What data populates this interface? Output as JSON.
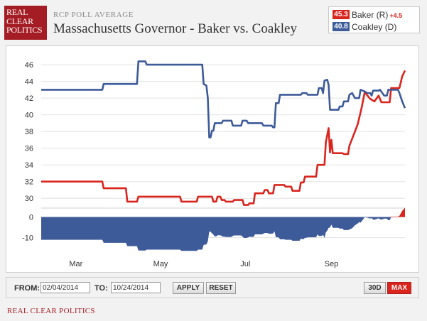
{
  "logo": {
    "lines": [
      "REAL",
      "CLEAR",
      "POLITICS"
    ]
  },
  "header": {
    "subtitle": "RCP POLL AVERAGE",
    "title": "Massachusetts Governor - Baker vs. Coakley"
  },
  "legend": {
    "items": [
      {
        "value": "45.3",
        "label": "Baker (R)",
        "spread": "+4.5",
        "color": "#d9251d"
      },
      {
        "value": "40.8",
        "label": "Coakley (D)",
        "spread": "",
        "color": "#3d5a99"
      }
    ]
  },
  "controls": {
    "from_label": "FROM:",
    "from_value": "02/04/2014",
    "to_label": "TO:",
    "to_value": "10/24/2014",
    "apply_label": "APPLY",
    "reset_label": "RESET",
    "range_30d": "30D",
    "range_max": "MAX"
  },
  "footer": {
    "text": "REAL CLEAR POLITICS"
  },
  "chart_data": {
    "type": "line",
    "x_range": [
      "2014-02-04",
      "2014-10-24"
    ],
    "x_ticks": [
      {
        "date": "2014-03-01",
        "label": "Mar"
      },
      {
        "date": "2014-05-01",
        "label": "May"
      },
      {
        "date": "2014-07-01",
        "label": "Jul"
      },
      {
        "date": "2014-09-01",
        "label": "Sep"
      }
    ],
    "y_ticks": [
      30,
      32,
      34,
      36,
      38,
      40,
      42,
      44,
      46
    ],
    "ylim": [
      29,
      47.2
    ],
    "spread_ticks": [
      0,
      -10
    ],
    "spread_ylim": [
      -17,
      4
    ],
    "grid": true,
    "series": [
      {
        "name": "Baker (R)",
        "color": "#d9251d",
        "points": [
          [
            "2014-02-04",
            32.0
          ],
          [
            "2014-03-20",
            32.0
          ],
          [
            "2014-03-21",
            31.2
          ],
          [
            "2014-04-06",
            31.2
          ],
          [
            "2014-04-07",
            29.6
          ],
          [
            "2014-04-14",
            29.6
          ],
          [
            "2014-04-15",
            30.2
          ],
          [
            "2014-05-15",
            30.2
          ],
          [
            "2014-05-16",
            29.6
          ],
          [
            "2014-05-27",
            29.6
          ],
          [
            "2014-05-28",
            30.2
          ],
          [
            "2014-06-07",
            30.2
          ],
          [
            "2014-06-08",
            29.6
          ],
          [
            "2014-06-10",
            29.6
          ],
          [
            "2014-06-11",
            30.2
          ],
          [
            "2014-06-13",
            30.2
          ],
          [
            "2014-06-14",
            29.8
          ],
          [
            "2014-06-16",
            29.8
          ],
          [
            "2014-06-17",
            29.6
          ],
          [
            "2014-06-22",
            29.6
          ],
          [
            "2014-06-23",
            29.8
          ],
          [
            "2014-06-29",
            29.8
          ],
          [
            "2014-06-30",
            29.2
          ],
          [
            "2014-07-03",
            29.2
          ],
          [
            "2014-07-04",
            29.4
          ],
          [
            "2014-07-07",
            29.4
          ],
          [
            "2014-07-08",
            30.6
          ],
          [
            "2014-07-14",
            30.6
          ],
          [
            "2014-07-15",
            31.0
          ],
          [
            "2014-07-17",
            31.0
          ],
          [
            "2014-07-18",
            30.6
          ],
          [
            "2014-07-21",
            30.6
          ],
          [
            "2014-07-22",
            31.6
          ],
          [
            "2014-07-29",
            31.6
          ],
          [
            "2014-07-30",
            31.4
          ],
          [
            "2014-08-03",
            31.4
          ],
          [
            "2014-08-04",
            30.9
          ],
          [
            "2014-08-09",
            30.9
          ],
          [
            "2014-08-10",
            31.9
          ],
          [
            "2014-08-12",
            31.9
          ],
          [
            "2014-08-13",
            32.6
          ],
          [
            "2014-08-21",
            32.6
          ],
          [
            "2014-08-22",
            34.0
          ],
          [
            "2014-08-27",
            34.0
          ],
          [
            "2014-08-28",
            36.7
          ],
          [
            "2014-08-30",
            38.4
          ],
          [
            "2014-08-31",
            35.5
          ],
          [
            "2014-09-01",
            37.0
          ],
          [
            "2014-09-02",
            35.4
          ],
          [
            "2014-09-09",
            35.4
          ],
          [
            "2014-09-10",
            35.3
          ],
          [
            "2014-09-13",
            35.3
          ],
          [
            "2014-09-14",
            36.3
          ],
          [
            "2014-09-18",
            38.0
          ],
          [
            "2014-09-20",
            38.9
          ],
          [
            "2014-09-23",
            41.0
          ],
          [
            "2014-09-25",
            42.7
          ],
          [
            "2014-09-27",
            42.3
          ],
          [
            "2014-09-29",
            41.9
          ],
          [
            "2014-10-02",
            41.6
          ],
          [
            "2014-10-05",
            42.3
          ],
          [
            "2014-10-07",
            41.5
          ],
          [
            "2014-10-13",
            41.5
          ],
          [
            "2014-10-14",
            43.2
          ],
          [
            "2014-10-20",
            43.2
          ],
          [
            "2014-10-22",
            44.6
          ],
          [
            "2014-10-24",
            45.3
          ]
        ]
      },
      {
        "name": "Coakley (D)",
        "color": "#3d5a99",
        "points": [
          [
            "2014-02-04",
            43.0
          ],
          [
            "2014-03-20",
            43.0
          ],
          [
            "2014-03-21",
            43.7
          ],
          [
            "2014-04-14",
            43.7
          ],
          [
            "2014-04-15",
            46.4
          ],
          [
            "2014-04-20",
            46.4
          ],
          [
            "2014-04-21",
            46.0
          ],
          [
            "2014-05-31",
            46.0
          ],
          [
            "2014-06-01",
            43.7
          ],
          [
            "2014-06-03",
            43.5
          ],
          [
            "2014-06-04",
            42.0
          ],
          [
            "2014-06-05",
            37.3
          ],
          [
            "2014-06-06",
            37.3
          ],
          [
            "2014-06-07",
            38.1
          ],
          [
            "2014-06-08",
            38.1
          ],
          [
            "2014-06-09",
            39.0
          ],
          [
            "2014-06-14",
            39.0
          ],
          [
            "2014-06-15",
            39.3
          ],
          [
            "2014-06-21",
            39.3
          ],
          [
            "2014-06-22",
            38.7
          ],
          [
            "2014-06-28",
            38.7
          ],
          [
            "2014-06-29",
            39.3
          ],
          [
            "2014-07-02",
            39.3
          ],
          [
            "2014-07-03",
            39.0
          ],
          [
            "2014-07-13",
            39.0
          ],
          [
            "2014-07-14",
            38.7
          ],
          [
            "2014-07-20",
            38.7
          ],
          [
            "2014-07-21",
            38.5
          ],
          [
            "2014-07-22",
            38.5
          ],
          [
            "2014-07-23",
            41.4
          ],
          [
            "2014-07-25",
            41.4
          ],
          [
            "2014-07-26",
            42.4
          ],
          [
            "2014-08-10",
            42.4
          ],
          [
            "2014-08-11",
            42.6
          ],
          [
            "2014-08-14",
            42.6
          ],
          [
            "2014-08-15",
            42.4
          ],
          [
            "2014-08-22",
            42.4
          ],
          [
            "2014-08-23",
            43.2
          ],
          [
            "2014-08-25",
            43.2
          ],
          [
            "2014-08-26",
            42.6
          ],
          [
            "2014-08-27",
            44.1
          ],
          [
            "2014-08-29",
            44.2
          ],
          [
            "2014-08-30",
            43.6
          ],
          [
            "2014-08-31",
            40.6
          ],
          [
            "2014-09-06",
            40.6
          ],
          [
            "2014-09-07",
            41.0
          ],
          [
            "2014-09-09",
            41.0
          ],
          [
            "2014-09-10",
            41.6
          ],
          [
            "2014-09-13",
            41.6
          ],
          [
            "2014-09-14",
            42.4
          ],
          [
            "2014-09-16",
            42.6
          ],
          [
            "2014-09-18",
            42.0
          ],
          [
            "2014-09-21",
            42.0
          ],
          [
            "2014-09-22",
            43.0
          ],
          [
            "2014-09-25",
            42.8
          ],
          [
            "2014-09-27",
            42.6
          ],
          [
            "2014-09-29",
            42.6
          ],
          [
            "2014-09-30",
            42.3
          ],
          [
            "2014-10-01",
            42.9
          ],
          [
            "2014-10-05",
            42.9
          ],
          [
            "2014-10-06",
            43.0
          ],
          [
            "2014-10-09",
            42.3
          ],
          [
            "2014-10-11",
            42.3
          ],
          [
            "2014-10-12",
            43.0
          ],
          [
            "2014-10-19",
            43.0
          ],
          [
            "2014-10-20",
            42.6
          ],
          [
            "2014-10-22",
            41.6
          ],
          [
            "2014-10-24",
            40.8
          ]
        ]
      }
    ]
  }
}
